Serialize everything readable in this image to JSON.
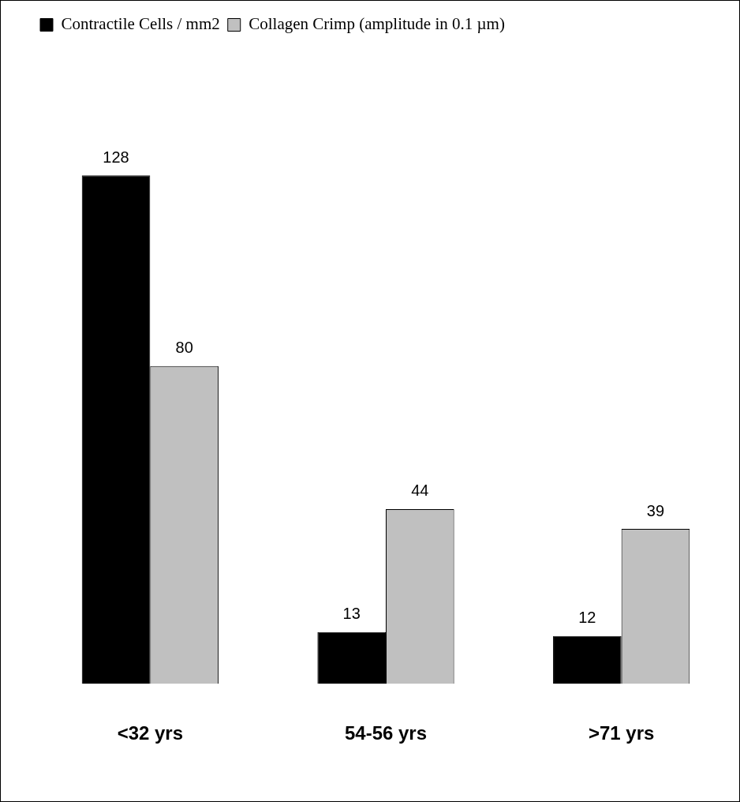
{
  "chart_data": {
    "type": "bar",
    "categories": [
      "<32 yrs",
      "54-56 yrs",
      ">71 yrs"
    ],
    "series": [
      {
        "name": "Contractile Cells / mm2",
        "color": "#000000",
        "values": [
          128,
          13,
          12
        ]
      },
      {
        "name": "Collagen Crimp (amplitude in 0.1 µm)",
        "color": "#c0c0c0",
        "values": [
          80,
          44,
          39
        ]
      }
    ],
    "data_labels": true,
    "legend": "top left",
    "grid": false
  }
}
